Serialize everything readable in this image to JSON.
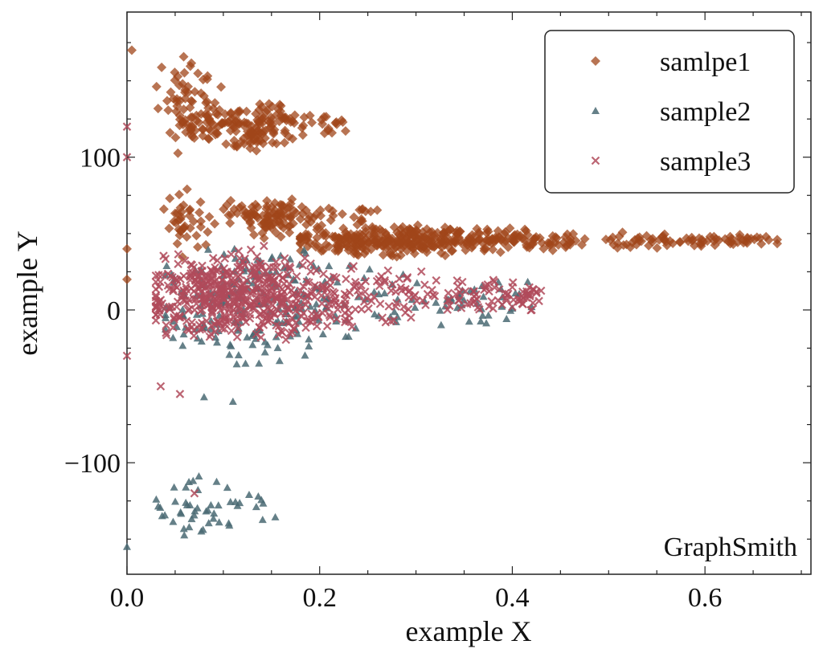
{
  "chart_data": {
    "type": "scatter",
    "xlabel": "example X",
    "ylabel": "example Y",
    "xlim": [
      0.0,
      0.71
    ],
    "ylim": [
      -173,
      195
    ],
    "x_ticks": [
      0.0,
      0.2,
      0.4,
      0.6
    ],
    "x_tick_labels": [
      "0.0",
      "0.2",
      "0.4",
      "0.6"
    ],
    "y_ticks": [
      -100,
      0,
      100
    ],
    "y_tick_labels": [
      "−100",
      "0",
      "100"
    ],
    "grid": false,
    "legend_position": "top-right",
    "watermark": "GraphSmith",
    "series": [
      {
        "name": "samlpe1",
        "marker": "diamond",
        "color": "#a0461a",
        "clusters": [
          {
            "n": 160,
            "x": [
              0.06,
              0.23
            ],
            "y": [
              102,
              140
            ],
            "peak": 0.13
          },
          {
            "n": 70,
            "x": [
              0.03,
              0.1
            ],
            "y": [
              95,
              178
            ],
            "peak": 0.06
          },
          {
            "n": 450,
            "x": [
              0.18,
              0.68
            ],
            "y": [
              33,
              58
            ],
            "peak": 0.3
          },
          {
            "n": 120,
            "x": [
              0.1,
              0.26
            ],
            "y": [
              45,
              78
            ],
            "peak": 0.15
          },
          {
            "n": 40,
            "x": [
              0.03,
              0.1
            ],
            "y": [
              30,
              85
            ],
            "peak": 0.06
          }
        ],
        "points": [
          [
            0.005,
            170
          ],
          [
            0.0,
            40
          ],
          [
            0.0,
            20
          ],
          [
            0.675,
            46
          ],
          [
            0.64,
            44
          ]
        ]
      },
      {
        "name": "sample2",
        "marker": "triangle",
        "color": "#4a6a73",
        "clusters": [
          {
            "n": 260,
            "x": [
              0.04,
              0.42
            ],
            "y": [
              -40,
              50
            ],
            "peak": 0.13
          },
          {
            "n": 50,
            "x": [
              0.03,
              0.16
            ],
            "y": [
              -155,
              -105
            ],
            "peak": 0.08
          }
        ],
        "points": [
          [
            0.11,
            -60
          ],
          [
            0.08,
            -57
          ],
          [
            0.0,
            -155
          ],
          [
            0.42,
            2
          ],
          [
            0.4,
            1
          ]
        ]
      },
      {
        "name": "sample3",
        "marker": "x",
        "color": "#b04a5a",
        "clusters": [
          {
            "n": 650,
            "x": [
              0.03,
              0.43
            ],
            "y": [
              -25,
              45
            ],
            "peak": 0.12
          }
        ],
        "points": [
          [
            0.0,
            120
          ],
          [
            0.0,
            100
          ],
          [
            0.0,
            -30
          ],
          [
            0.055,
            -55
          ],
          [
            0.035,
            -50
          ],
          [
            0.07,
            -120
          ],
          [
            0.42,
            0
          ],
          [
            0.4,
            2
          ]
        ]
      }
    ]
  }
}
